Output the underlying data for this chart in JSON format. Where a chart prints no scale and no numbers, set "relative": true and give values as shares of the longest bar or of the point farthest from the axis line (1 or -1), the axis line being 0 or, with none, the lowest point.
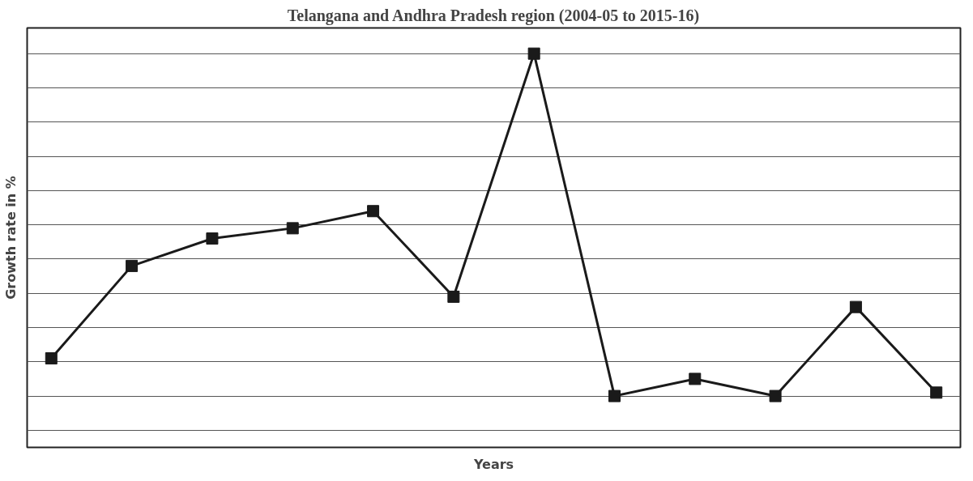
{
  "chart_data": {
    "type": "line",
    "title": "Telangana and Andhra Pradesh region (2004-05 to 2015-16)",
    "xlabel": "Years",
    "ylabel": "Growth rate in %",
    "relative": true,
    "categories": [
      null,
      null,
      null,
      null,
      null,
      null,
      null,
      null,
      null,
      null,
      null,
      null
    ],
    "series": [
      {
        "color": "#1a1a1a",
        "values": [
          0.11,
          0.38,
          0.46,
          0.49,
          0.54,
          0.29,
          1,
          0,
          0.05,
          0,
          0.26,
          0.01
        ]
      }
    ],
    "marker": "square",
    "line_style": "solid",
    "grid": "y"
  }
}
